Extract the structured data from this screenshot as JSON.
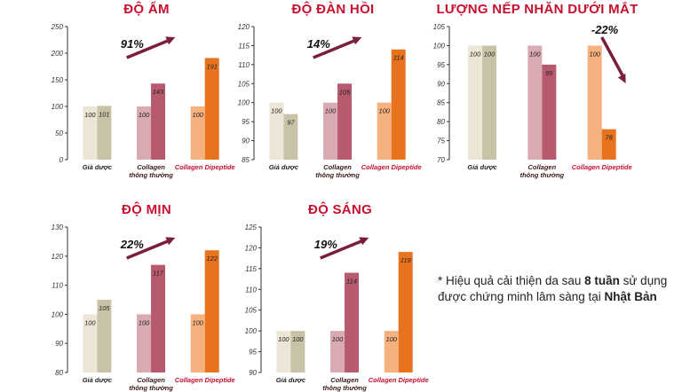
{
  "chart_data": [
    {
      "type": "bar",
      "title": "ĐỘ ẨM",
      "categories": [
        "Giả dược",
        "Collagen thông thường",
        "Collagen Dipeptide"
      ],
      "series_pairs": [
        [
          100,
          101
        ],
        [
          100,
          143
        ],
        [
          100,
          191
        ]
      ],
      "ylim": [
        0,
        250
      ],
      "yticks": [
        0,
        50,
        100,
        150,
        200,
        250
      ],
      "change_label": "91%",
      "trend": "up"
    },
    {
      "type": "bar",
      "title": "ĐỘ ĐÀN HỒI",
      "categories": [
        "Giả dược",
        "Collagen thông thường",
        "Collagen Dipeptide"
      ],
      "series_pairs": [
        [
          100,
          97
        ],
        [
          100,
          105
        ],
        [
          100,
          114
        ]
      ],
      "ylim": [
        85,
        120
      ],
      "yticks": [
        85,
        90,
        95,
        100,
        105,
        110,
        115,
        120
      ],
      "change_label": "14%",
      "trend": "up"
    },
    {
      "type": "bar",
      "title": "LƯỢNG NẾP NHĂN DƯỚI MẮT",
      "categories": [
        "Giả dược",
        "Collagen thông thường",
        "Collagen Dipeptide"
      ],
      "series_pairs": [
        [
          100,
          100
        ],
        [
          100,
          95
        ],
        [
          100,
          78
        ]
      ],
      "ylim": [
        70,
        105
      ],
      "yticks": [
        70,
        75,
        80,
        85,
        90,
        95,
        100,
        105
      ],
      "change_label": "-22%",
      "trend": "down"
    },
    {
      "type": "bar",
      "title": "ĐỘ MỊN",
      "categories": [
        "Giả dược",
        "Collagen thông thường",
        "Collagen Dipeptide"
      ],
      "series_pairs": [
        [
          100,
          105
        ],
        [
          100,
          117
        ],
        [
          100,
          122
        ]
      ],
      "ylim": [
        80,
        130
      ],
      "yticks": [
        80,
        90,
        100,
        110,
        120,
        130
      ],
      "change_label": "22%",
      "trend": "up"
    },
    {
      "type": "bar",
      "title": "ĐỘ SÁNG",
      "categories": [
        "Giả dược",
        "Collagen thông thường",
        "Collagen Dipeptide"
      ],
      "series_pairs": [
        [
          100,
          100
        ],
        [
          100,
          114
        ],
        [
          100,
          119
        ]
      ],
      "ylim": [
        90,
        125
      ],
      "yticks": [
        90,
        95,
        100,
        105,
        110,
        115,
        120,
        125
      ],
      "change_label": "19%",
      "trend": "up"
    }
  ],
  "colors": {
    "title": "#c8102e",
    "placebo_before": "#ede6d6",
    "placebo_after": "#c8c3a7",
    "regular_before": "#d9aab2",
    "regular_after": "#b85a6e",
    "dipeptide_before": "#f5b27e",
    "dipeptide_after": "#e8731f",
    "arrow": "#7a1f3a",
    "label_regular": "#3a1a1a",
    "label_dipeptide": "#c8102e"
  },
  "footnote": {
    "prefix": "* Hiệu quả cải thiện da sau ",
    "bold1": "8 tuần",
    "middle": " sử dụng được chứng minh lâm sàng tại ",
    "bold2": "Nhật Bản"
  }
}
